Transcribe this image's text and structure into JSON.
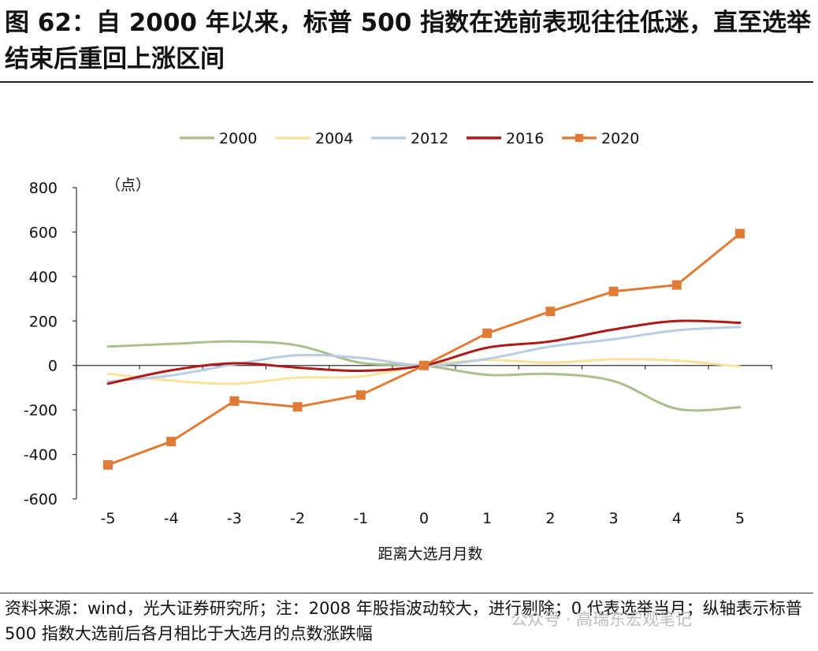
{
  "header": {
    "title": "图 62：自 2000 年以来，标普 500 指数在选前表现往往低迷，直至选举结束后重回上涨区间"
  },
  "chart_data": {
    "type": "line",
    "title": "图 62：自 2000 年以来，标普 500 指数在选前表现往往低迷，直至选举结束后重回上涨区间",
    "xlabel": "距离大选月月数",
    "ylabel": "（点）",
    "x": [
      -5,
      -4,
      -3,
      -2,
      -1,
      0,
      1,
      2,
      3,
      4,
      5
    ],
    "xticks": [
      "-5",
      "-4",
      "-3",
      "-2",
      "-1",
      "0",
      "1",
      "2",
      "3",
      "4",
      "5"
    ],
    "ylim": [
      -600,
      800
    ],
    "yticks": [
      "800",
      "600",
      "400",
      "200",
      "0",
      "-200",
      "-400",
      "-600"
    ],
    "ytick_values": [
      800,
      600,
      400,
      200,
      0,
      -200,
      -400,
      -600
    ],
    "grid": false,
    "legend_position": "top",
    "series": [
      {
        "name": "2000",
        "color": "#a8c08a",
        "marker": "none",
        "values": [
          85,
          97,
          108,
          90,
          12,
          0,
          -42,
          -38,
          -70,
          -195,
          -188
        ]
      },
      {
        "name": "2004",
        "color": "#fbe29a",
        "marker": "none",
        "values": [
          -38,
          -68,
          -82,
          -55,
          -50,
          0,
          25,
          12,
          28,
          22,
          -5
        ]
      },
      {
        "name": "2012",
        "color": "#b7cde3",
        "marker": "none",
        "values": [
          -72,
          -45,
          5,
          46,
          34,
          0,
          30,
          85,
          118,
          158,
          173
        ]
      },
      {
        "name": "2016",
        "color": "#b01818",
        "marker": "none",
        "values": [
          -82,
          -22,
          10,
          -10,
          -24,
          0,
          80,
          108,
          162,
          200,
          192
        ]
      },
      {
        "name": "2020",
        "color": "#e07b35",
        "marker": "square",
        "values": [
          -447,
          -342,
          -160,
          -186,
          -133,
          0,
          145,
          243,
          333,
          362,
          593
        ]
      }
    ]
  },
  "footer": {
    "source": "资料来源：wind，光大证券研究所；注：2008 年股指波动较大，进行剔除；0 代表选举当月；纵轴表示标普 500 指数大选前后各月相比于大选月的点数涨跌幅",
    "watermark": "公众号 · 高瑞东宏观笔记"
  }
}
